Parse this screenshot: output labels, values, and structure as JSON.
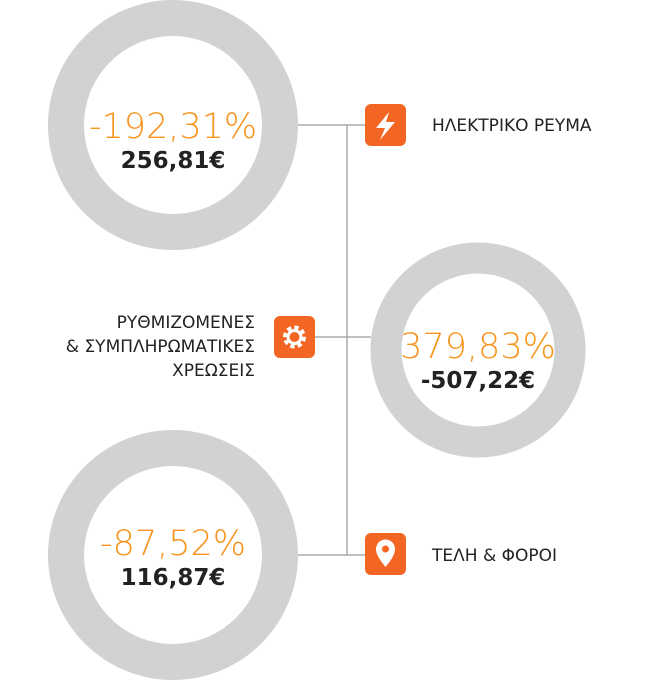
{
  "items": [
    {
      "percent": "-192,31%",
      "amount": "256,81€",
      "label": [
        "ΗΛΕΚΤΡΙΚΟ ΡΕΥΜΑ"
      ]
    },
    {
      "percent": "379,83%",
      "amount": "-507,22€",
      "label": [
        "ΡΥΘΜΙΖΟΜΕΝΕΣ",
        "& ΣΥΜΠΛΗΡΩΜΑΤΙΚΕΣ",
        "ΧΡΕΩΣΕΙΣ"
      ]
    },
    {
      "percent": "-87,52%",
      "amount": "116,87€",
      "label": [
        "ΤΕΛΗ & ΦΟΡΟΙ"
      ]
    }
  ]
}
